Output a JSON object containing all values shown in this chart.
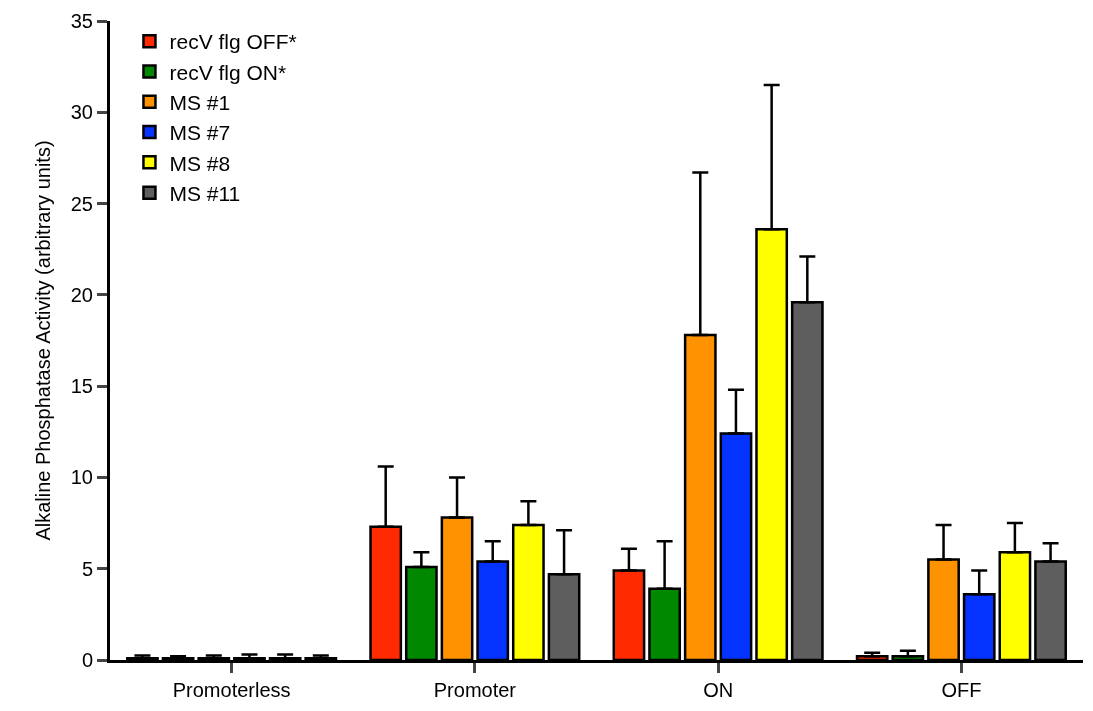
{
  "chart_data": {
    "type": "bar",
    "ylabel": "Alkaline Phosphatase Activity (arbitrary units)",
    "categories": [
      "Promoterless",
      "Promoter",
      "ON",
      "OFF"
    ],
    "series": [
      {
        "name": "recV flg OFF*",
        "color": "#ff2a00",
        "values": [
          0.1,
          7.3,
          4.9,
          0.2
        ],
        "errors": [
          [
            0.1,
            0.25
          ],
          [
            7.3,
            10.6
          ],
          [
            4.9,
            6.1
          ],
          [
            0.2,
            0.4
          ]
        ]
      },
      {
        "name": "recV flg ON*",
        "color": "#008800",
        "values": [
          0.1,
          5.1,
          3.9,
          0.2
        ],
        "errors": [
          [
            0.1,
            0.2
          ],
          [
            5.1,
            5.9
          ],
          [
            3.9,
            6.5
          ],
          [
            0.2,
            0.5
          ]
        ]
      },
      {
        "name": "MS #1",
        "color": "#ff9200",
        "values": [
          0.1,
          7.8,
          17.8,
          5.5
        ],
        "errors": [
          [
            0.1,
            0.25
          ],
          [
            7.8,
            10.0
          ],
          [
            17.8,
            26.7
          ],
          [
            5.5,
            7.4
          ]
        ]
      },
      {
        "name": "MS #7",
        "color": "#0433ff",
        "values": [
          0.1,
          5.4,
          12.4,
          3.6
        ],
        "errors": [
          [
            0.1,
            0.3
          ],
          [
            5.4,
            6.5
          ],
          [
            12.4,
            14.8
          ],
          [
            3.6,
            4.9
          ]
        ]
      },
      {
        "name": "MS #8",
        "color": "#ffff00",
        "values": [
          0.1,
          7.4,
          23.6,
          5.9
        ],
        "errors": [
          [
            0.1,
            0.3
          ],
          [
            7.4,
            8.7
          ],
          [
            23.6,
            31.5
          ],
          [
            5.9,
            7.5
          ]
        ]
      },
      {
        "name": "MS #11",
        "color": "#5e5e5e",
        "values": [
          0.1,
          4.7,
          19.6,
          5.4
        ],
        "errors": [
          [
            0.1,
            0.25
          ],
          [
            4.7,
            7.1
          ],
          [
            19.6,
            22.1
          ],
          [
            5.4,
            6.4
          ]
        ]
      }
    ],
    "ylim": [
      0,
      35
    ],
    "yticks": [
      0,
      5,
      10,
      15,
      20,
      25,
      30,
      35
    ],
    "legend": "top left"
  }
}
